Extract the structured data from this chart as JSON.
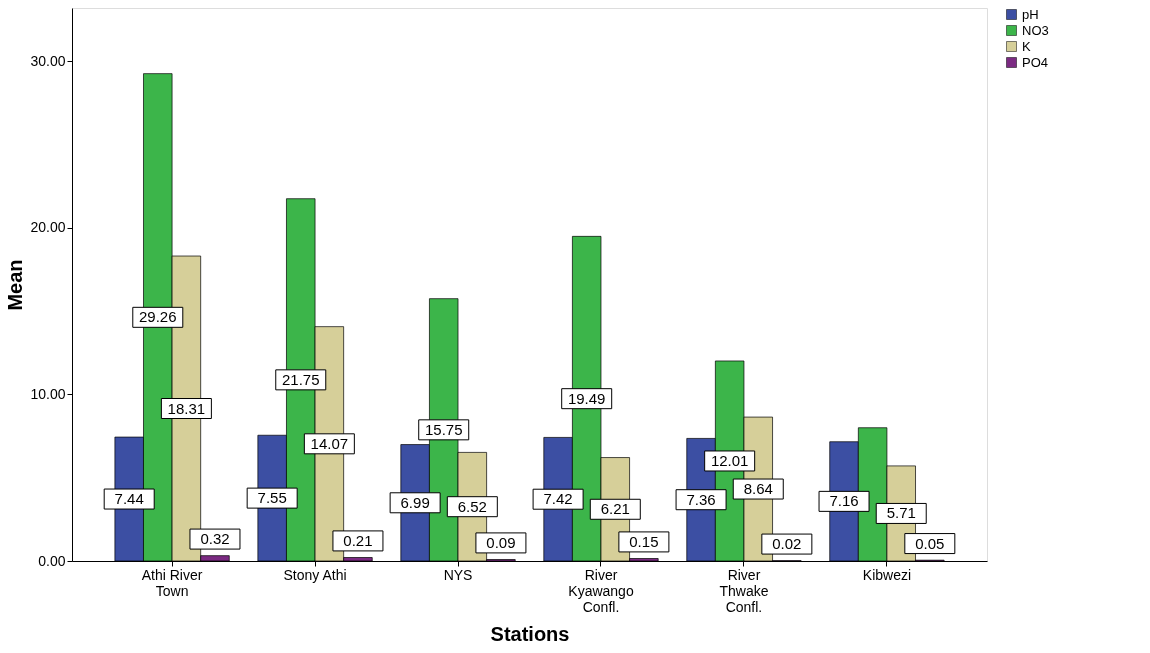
{
  "chart_data": {
    "type": "bar",
    "xlabel": "Stations",
    "ylabel": "Mean",
    "categories": [
      "Athi River Town",
      "Stony Athi",
      "NYS",
      "River Kyawango Confl.",
      "River Thwake Confl.",
      "Kibwezi"
    ],
    "series": [
      {
        "name": "pH",
        "color": "#3c4fa3",
        "values": [
          7.44,
          7.55,
          6.99,
          7.42,
          7.36,
          7.16
        ]
      },
      {
        "name": "NO3",
        "color": "#3cb54a",
        "values": [
          29.26,
          21.75,
          15.75,
          19.49,
          12.01,
          8.0
        ]
      },
      {
        "name": "K",
        "color": "#d6cf99",
        "values": [
          18.31,
          14.07,
          6.52,
          6.21,
          8.64,
          5.71
        ]
      },
      {
        "name": "PO4",
        "color": "#7b2a82",
        "values": [
          0.32,
          0.21,
          0.09,
          0.15,
          0.02,
          0.05
        ]
      }
    ],
    "value_labels": [
      [
        "7.44",
        "7.55",
        "6.99",
        "7.42",
        "7.36",
        "7.16"
      ],
      [
        "29.26",
        "21.75",
        "15.75",
        "19.49",
        "12.01",
        null
      ],
      [
        "18.31",
        "14.07",
        "6.52",
        "6.21",
        "8.64",
        "5.71"
      ],
      [
        "0.32",
        "0.21",
        "0.09",
        "0.15",
        "0.02",
        "0.05"
      ]
    ],
    "ylim": [
      0,
      33.2
    ],
    "yticks": [
      {
        "value": 0,
        "label": "0.00"
      },
      {
        "value": 10,
        "label": "10.00"
      },
      {
        "value": 20,
        "label": "20.00"
      },
      {
        "value": 30,
        "label": "30.00"
      }
    ],
    "grid": false,
    "legend": "top right"
  }
}
